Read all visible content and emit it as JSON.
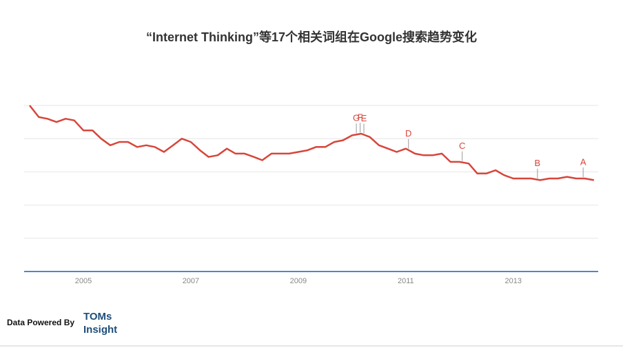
{
  "chart_data": {
    "type": "line",
    "title": "“Internet Thinking”等17个相关词组在Google搜索趋势变化",
    "x": [
      2004.0,
      2004.17,
      2004.33,
      2004.5,
      2004.67,
      2004.83,
      2005.0,
      2005.17,
      2005.33,
      2005.5,
      2005.67,
      2005.83,
      2006.0,
      2006.17,
      2006.33,
      2006.5,
      2006.67,
      2006.83,
      2007.0,
      2007.17,
      2007.33,
      2007.5,
      2007.67,
      2007.83,
      2008.0,
      2008.17,
      2008.33,
      2008.5,
      2008.67,
      2008.83,
      2009.0,
      2009.17,
      2009.33,
      2009.5,
      2009.67,
      2009.83,
      2010.0,
      2010.17,
      2010.33,
      2010.5,
      2010.67,
      2010.83,
      2011.0,
      2011.17,
      2011.33,
      2011.5,
      2011.67,
      2011.83,
      2012.0,
      2012.17,
      2012.33,
      2012.5,
      2012.67,
      2012.83,
      2013.0,
      2013.17,
      2013.33,
      2013.5,
      2013.67,
      2013.83,
      2014.0,
      2014.17,
      2014.33,
      2014.5
    ],
    "values": [
      100,
      93,
      92,
      90,
      92,
      91,
      85,
      85,
      80,
      76,
      78,
      78,
      75,
      76,
      75,
      72,
      76,
      80,
      78,
      73,
      69,
      70,
      74,
      71,
      71,
      69,
      67,
      71,
      71,
      71,
      72,
      73,
      75,
      75,
      78,
      79,
      82,
      83,
      81,
      76,
      74,
      72,
      74,
      71,
      70,
      70,
      71,
      66,
      66,
      65,
      59,
      59,
      61,
      58,
      56,
      56,
      56,
      55,
      56,
      56,
      57,
      56,
      56,
      55
    ],
    "color": "#d7453a",
    "xlim": [
      2004,
      2014.58
    ],
    "xticks": [
      2005,
      2007,
      2009,
      2011,
      2013
    ],
    "ylim": [
      0,
      100
    ],
    "yticks": [
      0,
      20,
      40,
      60,
      80,
      100
    ],
    "grid": true,
    "annotations": [
      {
        "label": "G",
        "x": 2010.08
      },
      {
        "label": "F",
        "x": 2010.15
      },
      {
        "label": "E",
        "x": 2010.22
      },
      {
        "label": "D",
        "x": 2011.05
      },
      {
        "label": "C",
        "x": 2012.05
      },
      {
        "label": "B",
        "x": 2013.45
      },
      {
        "label": "A",
        "x": 2014.3
      }
    ]
  },
  "footer": {
    "powered_by": "Data Powered By",
    "brand_line1": "TOMs",
    "brand_line2": "Insight"
  }
}
